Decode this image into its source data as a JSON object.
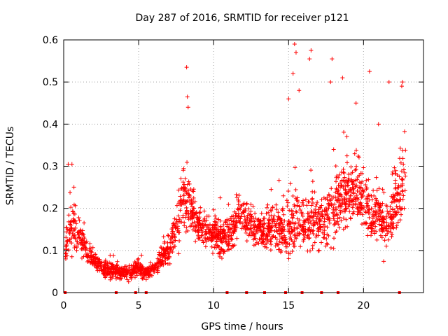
{
  "chart_data": {
    "type": "scatter",
    "title": "Day 287 of 2016, SRMTID for receiver p121",
    "xlabel": "GPS time / hours",
    "ylabel": "SRMTID / TECUs",
    "xlim": [
      0,
      24
    ],
    "ylim": [
      0,
      0.6
    ],
    "x_ticks": [
      0,
      5,
      10,
      15,
      20
    ],
    "x_tick_labels": [
      "0",
      "5",
      "10",
      "15",
      "20"
    ],
    "y_ticks": [
      0,
      0.1,
      0.2,
      0.3,
      0.4,
      0.5,
      0.6
    ],
    "y_tick_labels": [
      "0",
      "0.1",
      "0.2",
      "0.3",
      "0.4",
      "0.5",
      "0.6"
    ],
    "grid": true,
    "marker": "plus",
    "series_color": "#ff0000",
    "envelope": {
      "description": "approximate typical SRMTID level (center, spread) vs hour; individual scatter points are generated around this",
      "hours": [
        0.1,
        0.5,
        1.0,
        1.5,
        2.0,
        2.5,
        3.0,
        3.5,
        4.0,
        4.5,
        5.0,
        5.5,
        6.0,
        6.5,
        7.0,
        7.5,
        8.0,
        8.5,
        9.0,
        9.5,
        10.0,
        10.5,
        11.0,
        11.5,
        12.0,
        12.5,
        13.0,
        13.5,
        14.0,
        14.5,
        15.0,
        15.5,
        16.0,
        16.5,
        17.0,
        17.5,
        18.0,
        18.5,
        19.0,
        19.5,
        20.0,
        20.5,
        21.0,
        21.5,
        22.0,
        22.5,
        22.8
      ],
      "center": [
        0.11,
        0.16,
        0.14,
        0.1,
        0.08,
        0.06,
        0.055,
        0.05,
        0.045,
        0.05,
        0.06,
        0.045,
        0.06,
        0.08,
        0.1,
        0.15,
        0.22,
        0.2,
        0.16,
        0.15,
        0.14,
        0.13,
        0.14,
        0.17,
        0.18,
        0.16,
        0.15,
        0.15,
        0.16,
        0.15,
        0.15,
        0.17,
        0.15,
        0.18,
        0.16,
        0.18,
        0.2,
        0.22,
        0.23,
        0.24,
        0.22,
        0.18,
        0.19,
        0.15,
        0.2,
        0.25,
        0.28
      ],
      "spread": [
        0.04,
        0.06,
        0.04,
        0.03,
        0.02,
        0.02,
        0.02,
        0.02,
        0.015,
        0.02,
        0.02,
        0.015,
        0.02,
        0.03,
        0.03,
        0.06,
        0.08,
        0.06,
        0.04,
        0.04,
        0.04,
        0.04,
        0.04,
        0.05,
        0.05,
        0.05,
        0.04,
        0.05,
        0.06,
        0.06,
        0.07,
        0.08,
        0.06,
        0.08,
        0.06,
        0.07,
        0.08,
        0.08,
        0.08,
        0.08,
        0.07,
        0.06,
        0.07,
        0.06,
        0.08,
        0.08,
        0.09
      ]
    },
    "outliers": [
      {
        "x": 0.3,
        "y": 0.305
      },
      {
        "x": 0.55,
        "y": 0.305
      },
      {
        "x": 8.2,
        "y": 0.535
      },
      {
        "x": 8.25,
        "y": 0.465
      },
      {
        "x": 15.4,
        "y": 0.59
      },
      {
        "x": 15.5,
        "y": 0.57
      },
      {
        "x": 16.5,
        "y": 0.575
      },
      {
        "x": 16.4,
        "y": 0.555
      },
      {
        "x": 17.9,
        "y": 0.555
      },
      {
        "x": 18.6,
        "y": 0.51
      },
      {
        "x": 20.4,
        "y": 0.525
      },
      {
        "x": 21.7,
        "y": 0.5
      },
      {
        "x": 22.6,
        "y": 0.5
      },
      {
        "x": 22.55,
        "y": 0.49
      },
      {
        "x": 15.3,
        "y": 0.52
      },
      {
        "x": 15.0,
        "y": 0.46
      },
      {
        "x": 17.8,
        "y": 0.5
      },
      {
        "x": 15.7,
        "y": 0.48
      },
      {
        "x": 21.0,
        "y": 0.4
      },
      {
        "x": 19.5,
        "y": 0.45
      },
      {
        "x": 8.3,
        "y": 0.44
      }
    ],
    "x_axis_markers": [
      0.1,
      3.5,
      4.8,
      5.5,
      10.9,
      12.2,
      13.4,
      14.8,
      15.9,
      17.2,
      18.3,
      22.4
    ]
  }
}
